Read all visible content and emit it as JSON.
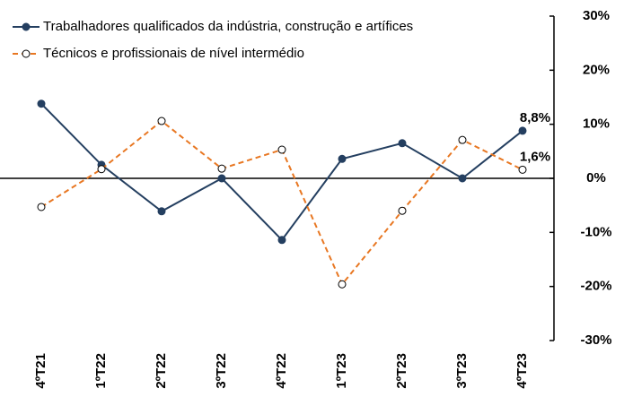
{
  "chart_data": {
    "type": "line",
    "categories": [
      "4ºT21",
      "1ºT22",
      "2ºT22",
      "3ºT22",
      "4ºT22",
      "1ºT23",
      "2ºT23",
      "3ºT23",
      "4ºT23"
    ],
    "series": [
      {
        "name": "Trabalhadores qualificados da indústria, construção e artífices",
        "color": "#243f60",
        "dashed": false,
        "marker": "filled",
        "values": [
          13.8,
          2.5,
          -6.1,
          0,
          -11.4,
          3.6,
          6.5,
          0,
          8.8
        ],
        "value_labels": [
          null,
          null,
          null,
          null,
          null,
          null,
          null,
          null,
          "8,8%"
        ]
      },
      {
        "name": "Técnicos e profissionais de nível intermédio",
        "color": "#e87722",
        "dashed": true,
        "marker": "open",
        "values": [
          -5.3,
          1.7,
          10.6,
          1.8,
          5.3,
          -19.6,
          -6.0,
          7.1,
          1.6
        ],
        "value_labels": [
          null,
          null,
          null,
          null,
          null,
          null,
          null,
          null,
          "1,6%"
        ]
      }
    ],
    "ylim": [
      -30,
      30
    ],
    "yticks": [
      {
        "value": -30,
        "label": "-30%"
      },
      {
        "value": -20,
        "label": "-20%"
      },
      {
        "value": -10,
        "label": "-10%"
      },
      {
        "value": 0,
        "label": "0%"
      },
      {
        "value": 10,
        "label": "10%"
      },
      {
        "value": 20,
        "label": "20%"
      },
      {
        "value": 30,
        "label": "30%"
      }
    ],
    "y_axis_side": "right"
  }
}
